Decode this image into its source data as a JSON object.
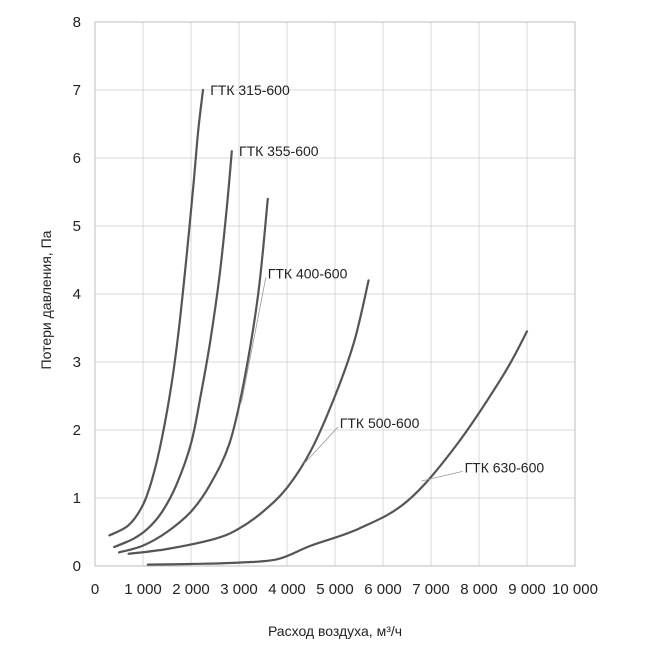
{
  "chart_data": {
    "type": "line",
    "xlabel": "Расход воздуха, м³/ч",
    "ylabel": "Потери давления, Па",
    "xlim": [
      0,
      10000
    ],
    "ylim": [
      0,
      8
    ],
    "xticks": [
      0,
      1000,
      2000,
      3000,
      4000,
      5000,
      6000,
      7000,
      8000,
      9000,
      10000
    ],
    "xtick_labels": [
      "0",
      "1 000",
      "2 000",
      "3 000",
      "4 000",
      "5 000",
      "6 000",
      "7 000",
      "8 000",
      "9 000",
      "10 000"
    ],
    "yticks": [
      0,
      1,
      2,
      3,
      4,
      5,
      6,
      7,
      8
    ],
    "ytick_labels": [
      "0",
      "1",
      "2",
      "3",
      "4",
      "5",
      "6",
      "7",
      "8"
    ],
    "grid": true,
    "series": [
      {
        "name": "ГТК 315-600",
        "x": [
          300,
          700,
          1000,
          1200,
          1400,
          1600,
          1750,
          1900,
          2050,
          2150,
          2250
        ],
        "y": [
          0.45,
          0.6,
          0.9,
          1.3,
          1.9,
          2.7,
          3.5,
          4.5,
          5.6,
          6.4,
          7.0
        ]
      },
      {
        "name": "ГТК 355-600",
        "x": [
          400,
          800,
          1100,
          1400,
          1700,
          2000,
          2200,
          2400,
          2600,
          2750,
          2850
        ],
        "y": [
          0.28,
          0.4,
          0.55,
          0.8,
          1.2,
          1.8,
          2.5,
          3.3,
          4.3,
          5.3,
          6.1
        ]
      },
      {
        "name": "ГТК 400-600",
        "x": [
          500,
          1000,
          1500,
          2000,
          2400,
          2800,
          3100,
          3400,
          3600
        ],
        "y": [
          0.2,
          0.3,
          0.5,
          0.8,
          1.2,
          1.8,
          2.7,
          4.0,
          5.4
        ]
      },
      {
        "name": "ГТК 500-600",
        "x": [
          700,
          1500,
          2500,
          3000,
          3500,
          4000,
          4500,
          5000,
          5400,
          5700
        ],
        "y": [
          0.18,
          0.25,
          0.4,
          0.55,
          0.8,
          1.15,
          1.7,
          2.5,
          3.3,
          4.2
        ]
      },
      {
        "name": "ГТК 630-600",
        "x": [
          1100,
          2000,
          3000,
          3800,
          4500,
          5500,
          6500,
          7500,
          8500,
          9000
        ],
        "y": [
          0.02,
          0.03,
          0.05,
          0.1,
          0.3,
          0.55,
          0.95,
          1.75,
          2.8,
          3.45
        ]
      }
    ],
    "labels": [
      {
        "text": "ГТК 315-600",
        "x": 2400,
        "y": 7.0,
        "leader": false
      },
      {
        "text": "ГТК 355-600",
        "x": 3000,
        "y": 6.1,
        "leader": false
      },
      {
        "text": "ГТК 400-600",
        "x": 3600,
        "y": 4.3,
        "leader": true,
        "lx": 3050,
        "ly": 2.4
      },
      {
        "text": "ГТК 500-600",
        "x": 5100,
        "y": 2.1,
        "leader": true,
        "lx": 4350,
        "ly": 1.5
      },
      {
        "text": "ГТК 630-600",
        "x": 7700,
        "y": 1.45,
        "leader": true,
        "lx": 6800,
        "ly": 1.25
      }
    ]
  }
}
